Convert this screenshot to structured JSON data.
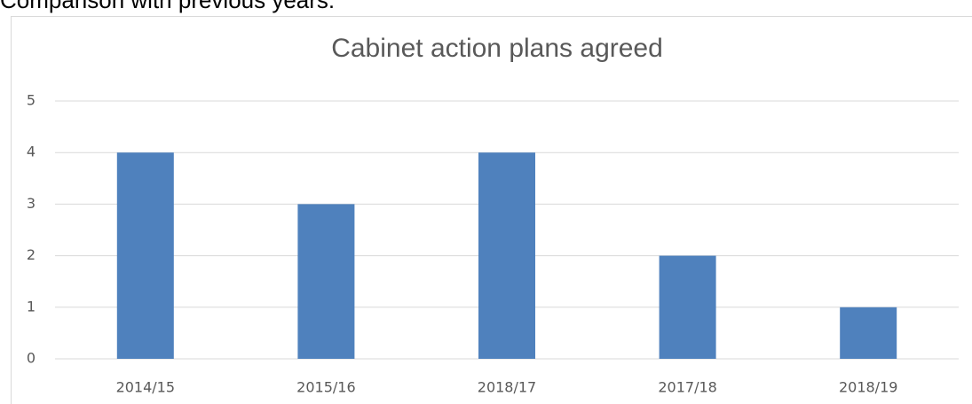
{
  "heading": "Comparison with previous years:",
  "chart_data": {
    "type": "bar",
    "title": "Cabinet action plans agreed",
    "categories": [
      "2014/15",
      "2015/16",
      "2018/17",
      "2017/18",
      "2018/19"
    ],
    "values": [
      4,
      3,
      4,
      2,
      1
    ],
    "color": "#4f81bd",
    "ylim": [
      0,
      5
    ],
    "yticks": [
      0,
      1,
      2,
      3,
      4,
      5
    ],
    "grid": true
  }
}
